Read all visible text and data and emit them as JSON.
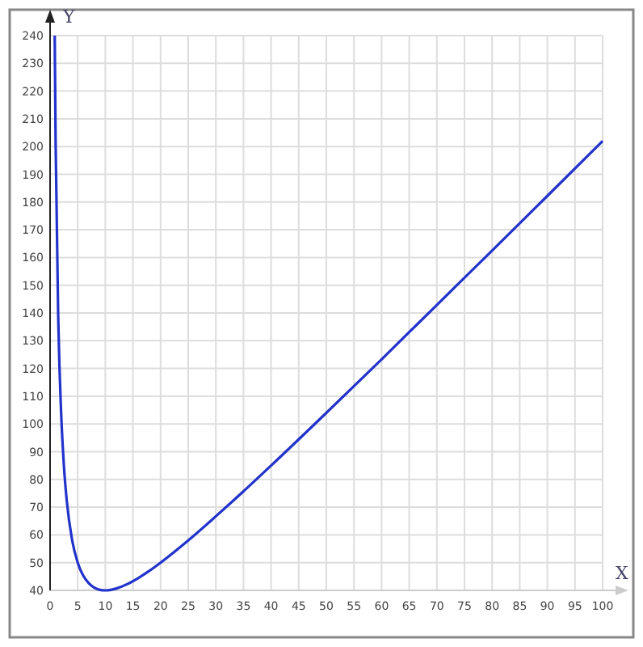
{
  "chart_data": {
    "type": "line",
    "xlabel": "X",
    "ylabel": "Y",
    "x": [
      0.84,
      1,
      1.5,
      2,
      2.5,
      3,
      4,
      5,
      6,
      7,
      8,
      9,
      10,
      11,
      12,
      14,
      16,
      18,
      20,
      25,
      30,
      35,
      40,
      50,
      60,
      70,
      80,
      90,
      100
    ],
    "series": [
      {
        "color": "#2233cc",
        "values": [
          240,
          202,
          136,
          104,
          85,
          72.7,
          58,
          50,
          45.3,
          42.6,
          41,
          40.2,
          40,
          40.2,
          40.7,
          42.3,
          44.5,
          47.1,
          50,
          58,
          66.7,
          75.7,
          85,
          104,
          123.3,
          142.9,
          162.5,
          182.2,
          202
        ]
      }
    ],
    "xlim": [
      0,
      100
    ],
    "ylim": [
      40,
      240
    ],
    "xticks": [
      0,
      5,
      10,
      15,
      20,
      25,
      30,
      35,
      40,
      45,
      50,
      55,
      60,
      65,
      70,
      75,
      80,
      85,
      90,
      95,
      100
    ],
    "yticks": [
      40,
      50,
      60,
      70,
      80,
      90,
      100,
      110,
      120,
      130,
      140,
      150,
      160,
      170,
      180,
      190,
      200,
      210,
      220,
      230,
      240
    ],
    "grid": true,
    "line_style": "solid",
    "marker": "none"
  }
}
